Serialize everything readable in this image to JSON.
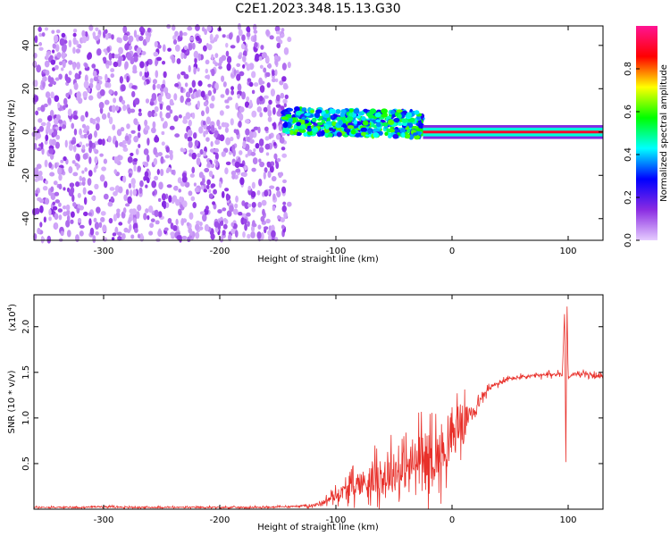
{
  "title": "C2E1.2023.348.15.13.G30",
  "chart_data": [
    {
      "type": "heatmap",
      "xlabel": "Height of straight line (km)",
      "ylabel": "Frequency (Hz)",
      "xlim": [
        -360,
        130
      ],
      "ylim": [
        -50,
        49
      ],
      "xticks": [
        -300,
        -200,
        -100,
        0,
        100
      ],
      "yticks": [
        -40,
        -20,
        0,
        20,
        40
      ],
      "colorbar": {
        "label": "Normalized spectral amplitude",
        "range": [
          0,
          1
        ],
        "ticks": [
          "0.0",
          "0.2",
          "0.4",
          "0.6",
          "0.8"
        ],
        "colors": [
          "#e6ccff",
          "#8a2be2",
          "#0000ff",
          "#00ffff",
          "#00ff00",
          "#ffff00",
          "#ff0000",
          "#ff1493"
        ]
      },
      "regions": [
        {
          "description": "broadband noise",
          "x_range": [
            -360,
            -140
          ],
          "freq_range": [
            -50,
            49
          ],
          "amplitude": 0.1
        },
        {
          "description": "signal cluster",
          "x_range": [
            -145,
            -25
          ],
          "freq_center": 5,
          "freq_halfwidth": 6,
          "amplitude": 0.45
        },
        {
          "description": "narrowband carrier",
          "x_range": [
            -25,
            130
          ],
          "freq_center": 0,
          "freq_halfwidth": 2,
          "amplitude": 0.9
        }
      ]
    },
    {
      "type": "line",
      "xlabel": "Height of straight line (km)",
      "ylabel": "SNR (10 * v/v)",
      "multiplier_label": "(x10",
      "multiplier_exp": "4",
      "xlim": [
        -360,
        130
      ],
      "ylim": [
        0,
        2.35
      ],
      "xticks": [
        -300,
        -200,
        -100,
        0,
        100
      ],
      "yticks": [
        "0.5",
        "1.0",
        "1.5",
        "2.0"
      ],
      "color": "#e8302a",
      "x": [
        -360,
        -340,
        -320,
        -300,
        -280,
        -260,
        -240,
        -220,
        -200,
        -180,
        -160,
        -140,
        -120,
        -110,
        -100,
        -90,
        -80,
        -70,
        -60,
        -50,
        -40,
        -30,
        -20,
        -10,
        0,
        5,
        10,
        15,
        20,
        25,
        30,
        35,
        40,
        50,
        60,
        70,
        80,
        90,
        95,
        97,
        98,
        99,
        100,
        102,
        105,
        110,
        120,
        130
      ],
      "y": [
        0.02,
        0.02,
        0.02,
        0.03,
        0.02,
        0.02,
        0.02,
        0.02,
        0.02,
        0.02,
        0.02,
        0.03,
        0.04,
        0.08,
        0.15,
        0.22,
        0.28,
        0.32,
        0.35,
        0.4,
        0.45,
        0.52,
        0.55,
        0.6,
        0.75,
        0.95,
        0.92,
        1.05,
        1.1,
        1.2,
        1.3,
        1.35,
        1.38,
        1.43,
        1.45,
        1.46,
        1.47,
        1.48,
        1.48,
        2.2,
        0.45,
        2.3,
        1.45,
        1.47,
        1.48,
        1.48,
        1.47,
        1.45
      ],
      "noise_amplitude": [
        0.01,
        0.01,
        0.01,
        0.01,
        0.01,
        0.01,
        0.01,
        0.01,
        0.01,
        0.01,
        0.01,
        0.01,
        0.02,
        0.04,
        0.08,
        0.12,
        0.18,
        0.22,
        0.26,
        0.3,
        0.32,
        0.35,
        0.4,
        0.35,
        0.25,
        0.35,
        0.3,
        0.1,
        0.08,
        0.06,
        0.05,
        0.04,
        0.04,
        0.03,
        0.03,
        0.03,
        0.03,
        0.03,
        0.03,
        0.0,
        0.0,
        0.0,
        0.03,
        0.03,
        0.03,
        0.03,
        0.03,
        0.03
      ]
    }
  ]
}
